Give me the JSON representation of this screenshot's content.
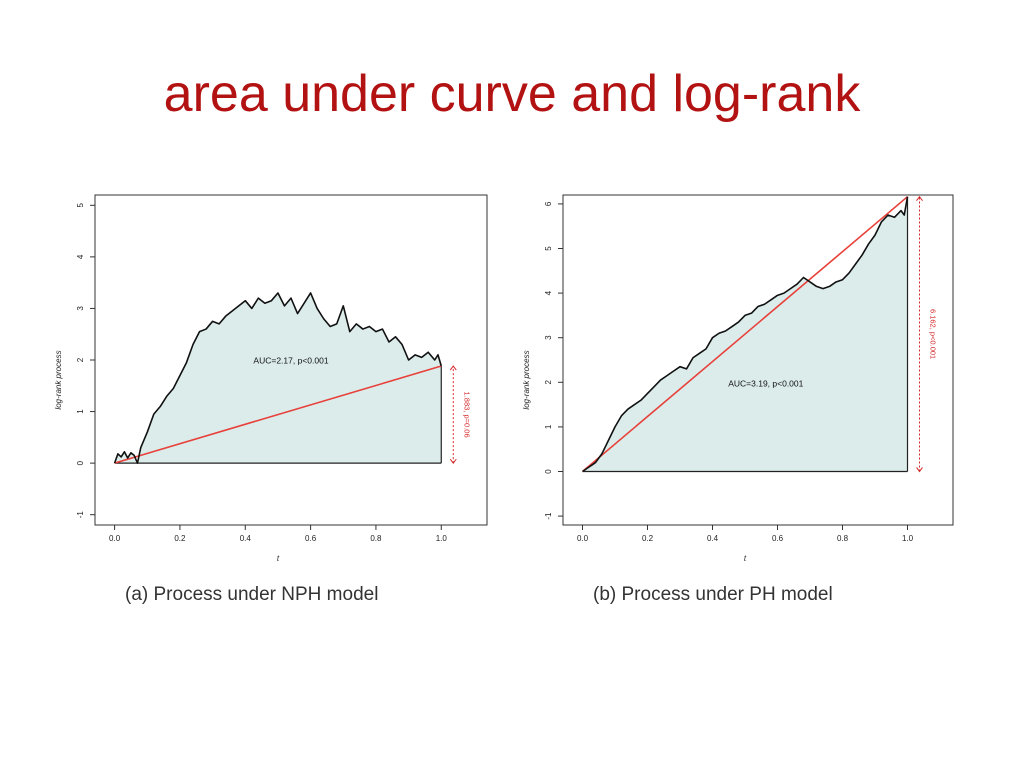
{
  "slide": {
    "title": "area under curve and log-rank"
  },
  "chart_data": [
    {
      "type": "line",
      "caption": "(a) Process under NPH model",
      "xlabel": "t",
      "ylabel": "log-rank process",
      "xlim": [
        0,
        1.0
      ],
      "ylim": [
        -1.2,
        5.2
      ],
      "xticks": [
        "0.0",
        "0.2",
        "0.4",
        "0.6",
        "0.8",
        "1.0"
      ],
      "yticks": [
        "-1",
        "0",
        "1",
        "2",
        "3",
        "4",
        "5"
      ],
      "annotation": "AUC=2.17, p<0.001",
      "end_label": "1.883, p=0.06",
      "end_value": 1.883,
      "colors": {
        "process": "#111111",
        "line": "#e8403a",
        "fill": "#dbeceb",
        "marker": "#d62728"
      },
      "series": [
        {
          "x": [
            0.0,
            0.01,
            0.02,
            0.03,
            0.04,
            0.05,
            0.06,
            0.07,
            0.08,
            0.1,
            0.12,
            0.14,
            0.16,
            0.18,
            0.2,
            0.22,
            0.24,
            0.26,
            0.28,
            0.3,
            0.32,
            0.34,
            0.36,
            0.38,
            0.4,
            0.42,
            0.44,
            0.46,
            0.48,
            0.5,
            0.52,
            0.54,
            0.56,
            0.58,
            0.6,
            0.62,
            0.64,
            0.66,
            0.68,
            0.7,
            0.72,
            0.74,
            0.76,
            0.78,
            0.8,
            0.82,
            0.84,
            0.86,
            0.88,
            0.9,
            0.92,
            0.94,
            0.96,
            0.98,
            0.99,
            1.0
          ],
          "y": [
            0.0,
            0.18,
            0.12,
            0.22,
            0.1,
            0.2,
            0.15,
            0.0,
            0.3,
            0.6,
            0.95,
            1.1,
            1.3,
            1.45,
            1.7,
            1.95,
            2.3,
            2.55,
            2.6,
            2.75,
            2.7,
            2.85,
            2.95,
            3.05,
            3.15,
            3.0,
            3.2,
            3.1,
            3.15,
            3.3,
            3.05,
            3.2,
            2.9,
            3.1,
            3.3,
            3.0,
            2.8,
            2.65,
            2.7,
            3.05,
            2.55,
            2.7,
            2.6,
            2.65,
            2.55,
            2.6,
            2.35,
            2.45,
            2.3,
            2.0,
            2.1,
            2.05,
            2.15,
            2.0,
            2.1,
            1.883
          ]
        }
      ]
    },
    {
      "type": "line",
      "caption": "(b) Process under PH model",
      "xlabel": "t",
      "ylabel": "log-rank process",
      "xlim": [
        0,
        1.0
      ],
      "ylim": [
        -1.2,
        6.2
      ],
      "xticks": [
        "0.0",
        "0.2",
        "0.4",
        "0.6",
        "0.8",
        "1.0"
      ],
      "yticks": [
        "-1",
        "0",
        "1",
        "2",
        "3",
        "4",
        "5",
        "6"
      ],
      "annotation": "AUC=3.19, p<0.001",
      "end_label": "6.162, p<0.001",
      "end_value": 6.162,
      "colors": {
        "process": "#111111",
        "line": "#e8403a",
        "fill": "#dbeceb",
        "marker": "#d62728"
      },
      "series": [
        {
          "x": [
            0.0,
            0.01,
            0.02,
            0.03,
            0.04,
            0.05,
            0.06,
            0.07,
            0.08,
            0.1,
            0.12,
            0.14,
            0.16,
            0.18,
            0.2,
            0.22,
            0.24,
            0.26,
            0.28,
            0.3,
            0.32,
            0.34,
            0.36,
            0.38,
            0.4,
            0.42,
            0.44,
            0.46,
            0.48,
            0.5,
            0.52,
            0.54,
            0.56,
            0.58,
            0.6,
            0.62,
            0.64,
            0.66,
            0.68,
            0.7,
            0.72,
            0.74,
            0.76,
            0.78,
            0.8,
            0.82,
            0.84,
            0.86,
            0.88,
            0.9,
            0.92,
            0.94,
            0.96,
            0.98,
            0.99,
            1.0
          ],
          "y": [
            0.0,
            0.05,
            0.1,
            0.15,
            0.2,
            0.3,
            0.4,
            0.55,
            0.7,
            1.0,
            1.25,
            1.4,
            1.5,
            1.6,
            1.75,
            1.9,
            2.05,
            2.15,
            2.25,
            2.35,
            2.3,
            2.55,
            2.65,
            2.75,
            3.0,
            3.1,
            3.15,
            3.25,
            3.35,
            3.5,
            3.55,
            3.7,
            3.75,
            3.85,
            3.95,
            4.0,
            4.1,
            4.2,
            4.35,
            4.25,
            4.15,
            4.1,
            4.15,
            4.25,
            4.3,
            4.45,
            4.65,
            4.85,
            5.1,
            5.3,
            5.6,
            5.75,
            5.7,
            5.85,
            5.75,
            6.162
          ]
        }
      ]
    }
  ]
}
